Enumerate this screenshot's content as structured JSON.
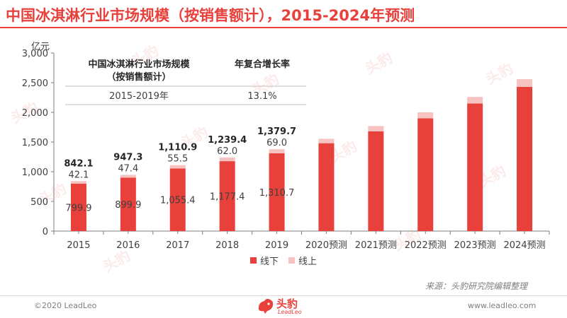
{
  "title": "中国冰淇淋行业市场规模（按销售额计），2015-2024年预测",
  "chart_data": {
    "type": "bar",
    "stacked": true,
    "unit": "亿元",
    "categories": [
      "2015",
      "2016",
      "2017",
      "2018",
      "2019",
      "2020预测",
      "2021预测",
      "2022预测",
      "2023预测",
      "2024预测"
    ],
    "series": [
      {
        "name": "线下",
        "color": "#e8413b",
        "values": [
          799.9,
          899.9,
          1055.4,
          1177.4,
          1310.7,
          1480,
          1680,
          1900,
          2150,
          2430
        ]
      },
      {
        "name": "线上",
        "color": "#f7c3c0",
        "values": [
          42.1,
          47.4,
          55.5,
          62.0,
          69.0,
          75,
          90,
          100,
          110,
          130
        ]
      }
    ],
    "totals_labels": [
      "842.1",
      "947.3",
      "1,110.9",
      "1,239.4",
      "1,379.7"
    ],
    "offline_labels": [
      "799.9",
      "899.9",
      "1,055.4",
      "1,177.4",
      "1,310.7"
    ],
    "online_labels": [
      "42.1",
      "47.4",
      "55.5",
      "62.0",
      "69.0"
    ],
    "ylim": [
      0,
      3000
    ],
    "yticks": [
      0,
      500,
      1000,
      1500,
      2000,
      2500,
      3000
    ],
    "ytick_labels": [
      "0",
      "500",
      "1,000",
      "1,500",
      "2,000",
      "2,500",
      "3,000"
    ],
    "legend_position": "bottom-center",
    "grid": false
  },
  "cagr_table": {
    "header_col1": "中国冰淇淋行业市场规模（按销售额计）",
    "header_col2": "年复合增长率",
    "period": "2015-2019年",
    "rate": "13.1%"
  },
  "source": "来源：头豹研究院编辑整理",
  "copyright": "©2020 LeadLeo",
  "website": "www.leadleo.com",
  "logo": {
    "cn": "头豹",
    "en": "LeadLeo"
  },
  "watermark_text": "头豹"
}
